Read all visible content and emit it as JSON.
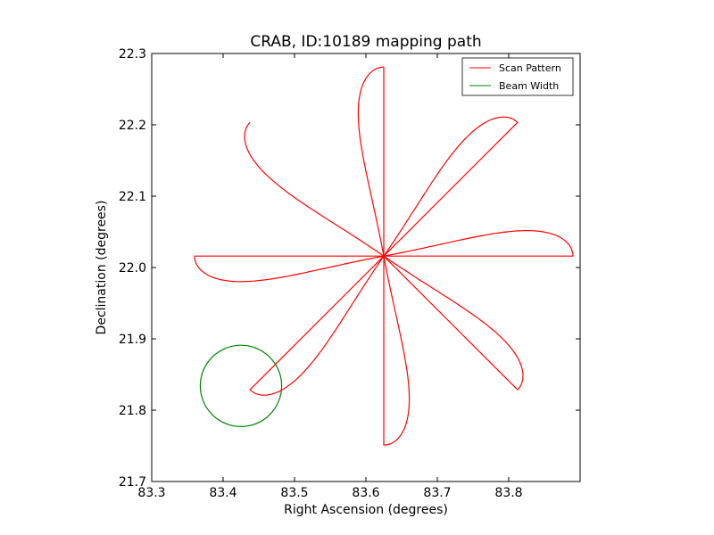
{
  "chart_data": {
    "type": "line",
    "title": "CRAB, ID:10189 mapping path",
    "xlabel": "Right Ascension (degrees)",
    "ylabel": "Declination (degrees)",
    "xlim": [
      83.3,
      83.9
    ],
    "ylim": [
      21.7,
      22.3
    ],
    "xticks": [
      "83.3",
      "83.4",
      "83.5",
      "83.6",
      "83.7",
      "83.8"
    ],
    "yticks": [
      "21.7",
      "21.8",
      "21.9",
      "22.0",
      "22.1",
      "22.2",
      "22.3"
    ],
    "xtick_values": [
      83.3,
      83.4,
      83.5,
      83.6,
      83.7,
      83.8
    ],
    "ytick_values": [
      21.7,
      21.8,
      21.9,
      22.0,
      22.1,
      22.2,
      22.3
    ],
    "grid": false,
    "legend_position": "top-right",
    "series": [
      {
        "name": "Scan Pattern",
        "color": "#ff0000",
        "center": [
          83.625,
          22.016
        ],
        "petals": 8,
        "petal_length": 0.265,
        "petal_half_width": 0.04,
        "first_petal_angle_deg": 90
      },
      {
        "name": "Beam Width",
        "color": "#008000",
        "center": [
          83.425,
          21.834
        ],
        "radius_deg": 0.057
      }
    ]
  }
}
